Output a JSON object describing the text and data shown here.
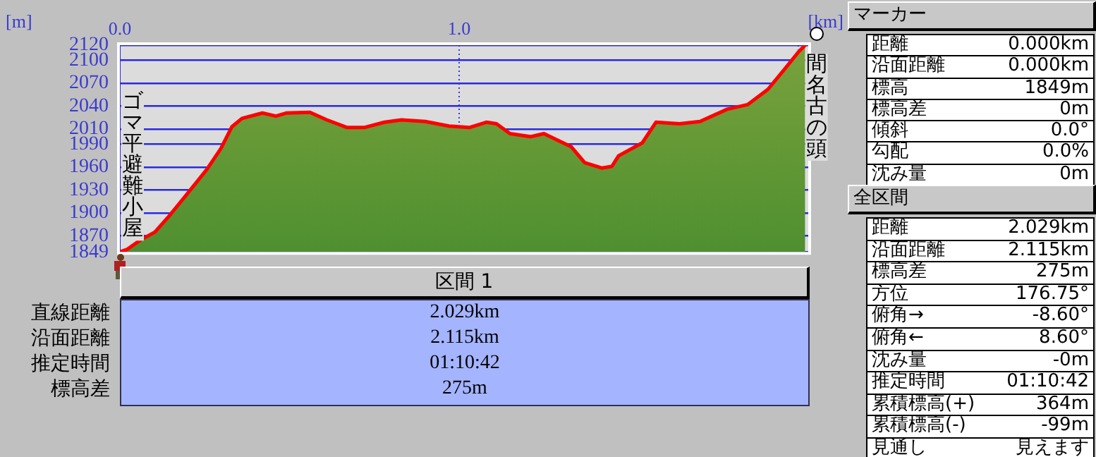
{
  "chart_data": [
    {
      "type": "area",
      "xlabel": "[km]",
      "ylabel": "[m]",
      "x": [
        0,
        0.02,
        0.062,
        0.103,
        0.145,
        0.2,
        0.256,
        0.297,
        0.33,
        0.36,
        0.42,
        0.46,
        0.49,
        0.56,
        0.61,
        0.67,
        0.72,
        0.78,
        0.83,
        0.9,
        0.97,
        1.03,
        1.08,
        1.11,
        1.15,
        1.21,
        1.25,
        1.33,
        1.37,
        1.42,
        1.45,
        1.47,
        1.54,
        1.58,
        1.65,
        1.71,
        1.79,
        1.85,
        1.91,
        1.96,
        2.0,
        2.02
      ],
      "series": [
        {
          "color": "#79a23c",
          "values": [
            1849,
            1852,
            1865,
            1875,
            1896,
            1926,
            1957,
            1984,
            2013,
            2024,
            2031,
            2027,
            2031,
            2032,
            2022,
            2012,
            2012,
            2019,
            2022,
            2020,
            2014,
            2012,
            2019,
            2017,
            2004,
            2000,
            2004,
            1987,
            1966,
            1959,
            1961,
            1975,
            1992,
            2019,
            2017,
            2020,
            2036,
            2042,
            2062,
            2089,
            2111,
            2120
          ]
        }
      ],
      "xlim": [
        0,
        2.029
      ],
      "xticks": [
        {
          "value": 0,
          "label": "0.0"
        },
        {
          "value": 1,
          "label": "1.0"
        },
        {
          "value": 2,
          "label": null
        }
      ],
      "ylim": [
        1849,
        2120
      ],
      "yticks": [
        1849,
        1870,
        1900,
        1930,
        1960,
        1990,
        2010,
        2040,
        2070,
        2100,
        2120
      ],
      "grid": true,
      "annotations": [
        {
          "text": "ゴマ平避難小屋",
          "x": 0,
          "y": 1849
        },
        {
          "text": "間名古の頭",
          "x": 2.02,
          "y": 2120
        }
      ]
    },
    {
      "type": "other",
      "title": "区間 1",
      "annotations": [
        "直線距離",
        "2.029km",
        "沿面距離",
        "2.115km",
        "推定時間",
        "01:10:42",
        "標高差",
        "275m"
      ]
    },
    {
      "type": "other",
      "title": "マーカー",
      "annotations": [
        "距離",
        "0.000km",
        "沿面距離",
        "0.000km",
        "標高",
        "1849m",
        "標高差",
        "0m",
        "傾斜",
        "0.0°",
        "勾配",
        "0.0%",
        "沈み量",
        "0m"
      ]
    },
    {
      "type": "other",
      "title": "全区間",
      "annotations": [
        "距離",
        "2.029km",
        "沿面距離",
        "2.115km",
        "標高差",
        "275m",
        "方位",
        "176.75°",
        "俯角→",
        "-8.60°",
        "俯角←",
        "8.60°",
        "沈み量",
        "-0m",
        "推定時間",
        "01:10:42",
        "累積標高(+)",
        "364m",
        "累積標高(-)",
        "-99m",
        "見通し",
        "見えます"
      ]
    }
  ]
}
